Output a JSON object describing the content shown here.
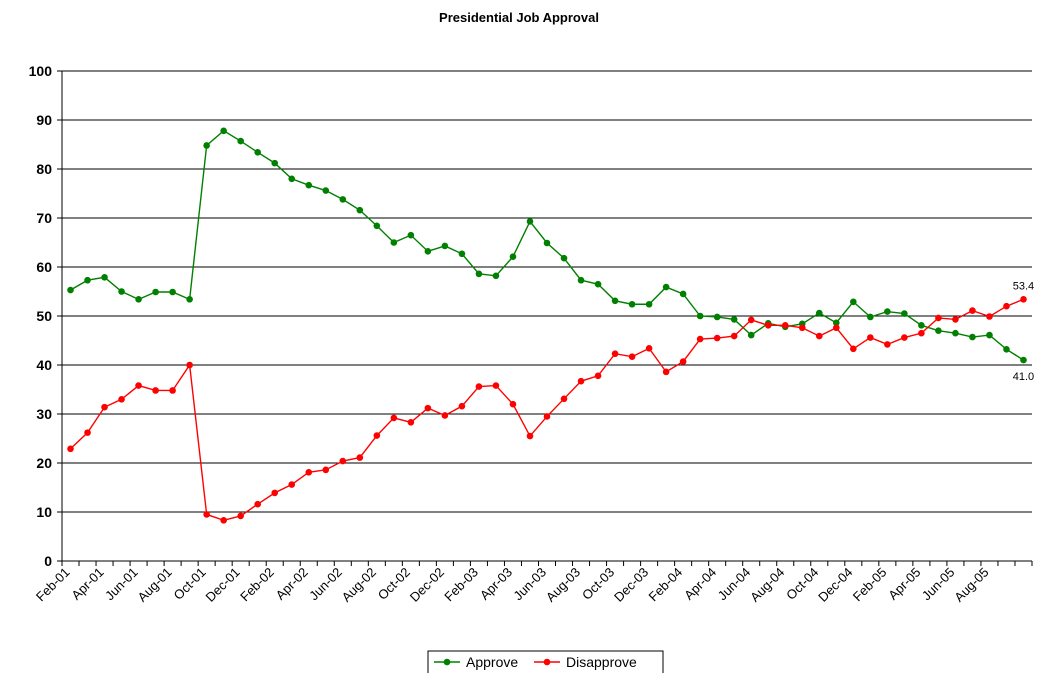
{
  "chart_data": {
    "type": "line",
    "title": "Presidential Job Approval",
    "xlabel": "",
    "ylabel": "",
    "ylim": [
      0,
      100
    ],
    "yticks": [
      0,
      10,
      20,
      30,
      40,
      50,
      60,
      70,
      80,
      90,
      100
    ],
    "grid": true,
    "legend": "bottom",
    "x_tick_labels": [
      "Feb-01",
      "Apr-01",
      "Jun-01",
      "Aug-01",
      "Oct-01",
      "Dec-01",
      "Feb-02",
      "Apr-02",
      "Jun-02",
      "Aug-02",
      "Oct-02",
      "Dec-02",
      "Feb-03",
      "Apr-03",
      "Jun-03",
      "Aug-03",
      "Oct-03",
      "Dec-03",
      "Feb-04",
      "Apr-04",
      "Jun-04",
      "Aug-04",
      "Oct-04",
      "Dec-04",
      "Feb-05",
      "Apr-05",
      "Jun-05",
      "Aug-05"
    ],
    "series": [
      {
        "name": "Approve",
        "color": "#008000",
        "values": [
          55.3,
          57.3,
          57.9,
          55.0,
          53.4,
          54.9,
          54.9,
          53.4,
          84.8,
          87.8,
          85.7,
          83.4,
          81.2,
          78.0,
          76.7,
          75.6,
          73.8,
          71.6,
          68.4,
          65.0,
          66.5,
          63.2,
          64.3,
          62.7,
          58.6,
          58.2,
          62.1,
          69.3,
          64.9,
          61.8,
          57.3,
          56.5,
          53.1,
          52.4,
          52.4,
          55.9,
          54.5,
          50.0,
          49.8,
          49.3,
          46.1,
          48.5,
          47.8,
          48.4,
          50.6,
          48.6,
          52.9,
          49.8,
          50.9,
          50.5,
          48.1,
          47.0,
          46.5,
          45.7,
          46.1,
          43.2,
          41.0
        ]
      },
      {
        "name": "Disapprove",
        "color": "#ff0000",
        "values": [
          22.9,
          26.2,
          31.4,
          33.0,
          35.8,
          34.8,
          34.8,
          40.0,
          9.5,
          8.3,
          9.2,
          11.6,
          13.9,
          15.6,
          18.1,
          18.6,
          20.4,
          21.1,
          25.6,
          29.2,
          28.3,
          31.2,
          29.7,
          31.6,
          35.6,
          35.8,
          32.0,
          25.5,
          29.5,
          33.1,
          36.7,
          37.8,
          42.3,
          41.7,
          43.4,
          38.6,
          40.7,
          45.3,
          45.5,
          45.9,
          49.2,
          48.1,
          48.1,
          47.6,
          45.9,
          47.6,
          43.3,
          45.6,
          44.2,
          45.6,
          46.5,
          49.6,
          49.3,
          51.1,
          49.9,
          52.0,
          53.4
        ]
      }
    ],
    "data_labels": [
      {
        "series": "Disapprove",
        "text": "53.4"
      },
      {
        "series": "Approve",
        "text": "41.0"
      }
    ]
  }
}
